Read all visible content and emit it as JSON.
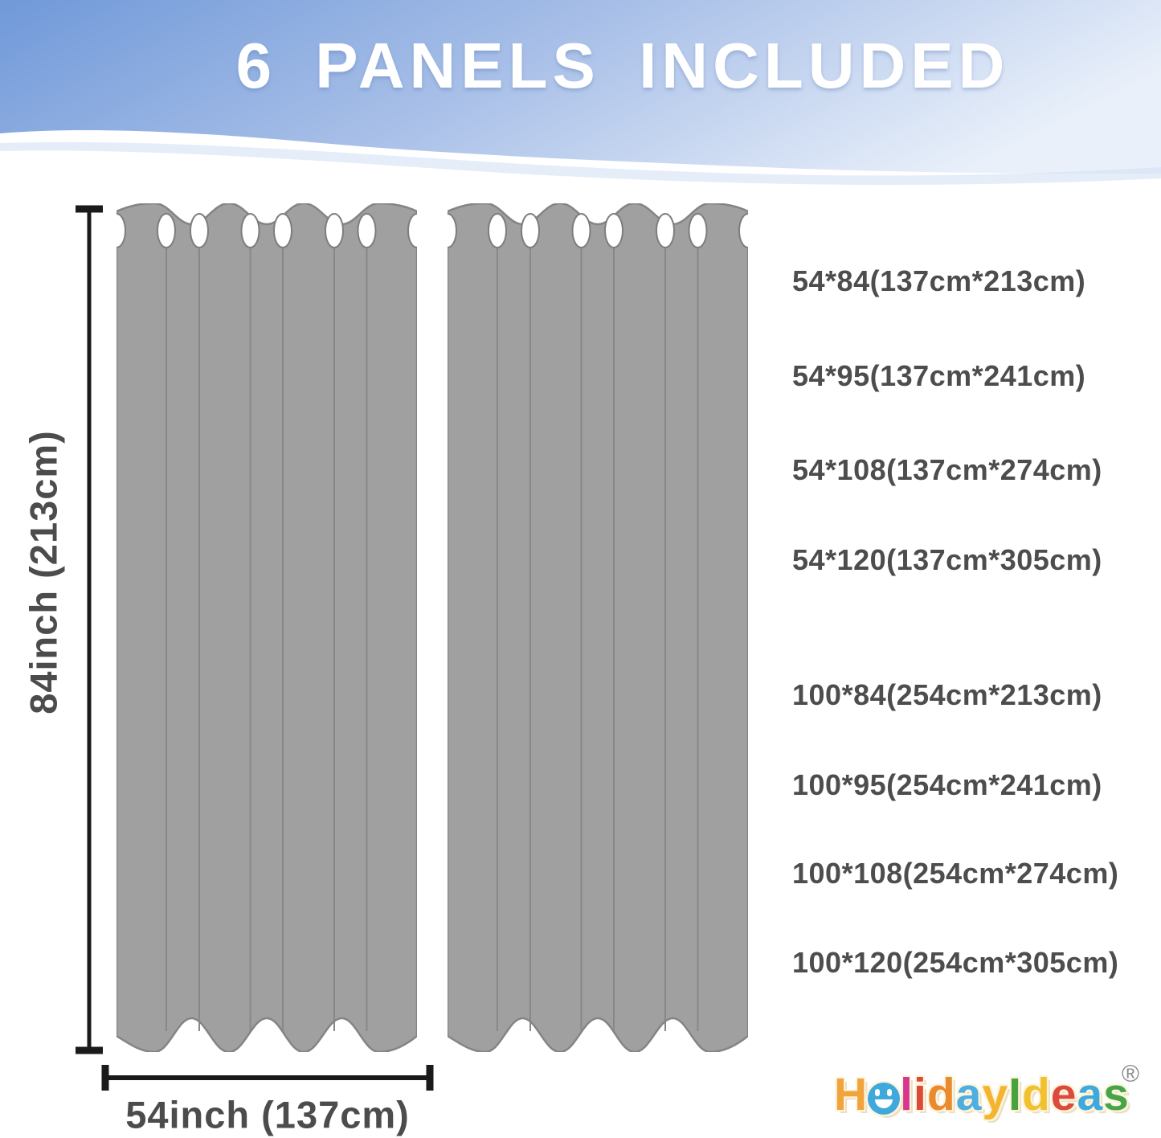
{
  "header": {
    "title": "6 PANELS INCLUDED",
    "gradient_left": "#7099d9",
    "gradient_right": "#e9f0fa"
  },
  "diagram": {
    "panel_count": 2,
    "curtain_color": "#a0a0a0",
    "height_label": "84inch (213cm)",
    "width_label": "54inch (137cm)"
  },
  "sizes": [
    "54*84(137cm*213cm)",
    "54*95(137cm*241cm)",
    "54*108(137cm*274cm)",
    "54*120(137cm*305cm)",
    "100*84(254cm*213cm)",
    "100*95(254cm*241cm)",
    "100*108(254cm*274cm)",
    "100*120(254cm*305cm)"
  ],
  "logo": {
    "text": "HolidayIdeas",
    "registered": "®",
    "letters": [
      {
        "ch": "H",
        "color": "#F2A33C"
      },
      {
        "ch": "o",
        "color": "#3FA9DC",
        "face": true
      },
      {
        "ch": "l",
        "color": "#D8358F"
      },
      {
        "ch": "i",
        "color": "#DD4B38"
      },
      {
        "ch": "d",
        "color": "#E98A2F"
      },
      {
        "ch": "a",
        "color": "#4FAEE0"
      },
      {
        "ch": "y",
        "color": "#F5B42F"
      },
      {
        "ch": "I",
        "color": "#48A33F"
      },
      {
        "ch": "d",
        "color": "#F2C12F"
      },
      {
        "ch": "e",
        "color": "#DB4A3C"
      },
      {
        "ch": "a",
        "color": "#3FA9DC"
      },
      {
        "ch": "s",
        "color": "#45A547"
      }
    ]
  }
}
